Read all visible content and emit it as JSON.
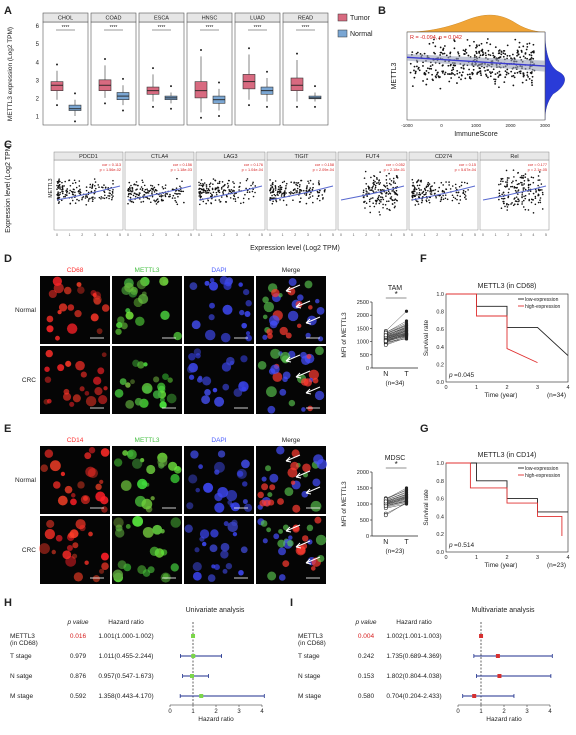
{
  "panels": {
    "A": {
      "letter": "A",
      "ylabel": "METTL3 expression (Log2 TPM)",
      "sig": "****",
      "yticks": [
        "1",
        "2",
        "3",
        "4",
        "5",
        "6"
      ],
      "legend": [
        {
          "name": "Tumor",
          "color": "#d86a80"
        },
        {
          "name": "Normal",
          "color": "#7aa6d3"
        }
      ]
    },
    "B": {
      "letter": "B",
      "ylabel": "METTL3",
      "xlabel": "ImmuneScore",
      "stat": "R = -0.094, p = 0.042",
      "xticks": [
        "-1000",
        "0",
        "1000",
        "2000",
        "3000"
      ]
    },
    "C": {
      "letter": "C",
      "ylabel": "Expression level (Log2 TPM)",
      "inner_ylabel": "METTL3",
      "xlabel": "Expression level (Log2 TPM)",
      "panels": [
        "PDCD1",
        "CTLA4",
        "LAG3",
        "TIGIT",
        "FUT4",
        "CD274",
        "Rel"
      ],
      "cors": [
        [
          "cor = 0.113",
          "p = 1.56e-02"
        ],
        [
          "cor = 0.156",
          "p = 1.18e-03"
        ],
        [
          "cor = 0.176",
          "p = 1.04e-04"
        ],
        [
          "cor = 0.158",
          "p = 2.09e-04"
        ],
        [
          "cor = 0.052",
          "p = 2.18e-01"
        ],
        [
          "cor = 0.15",
          "p = 5.67e-04"
        ],
        [
          "cor = 0.177",
          "p = 2.1e-05"
        ]
      ]
    },
    "D": {
      "letter": "D",
      "channels": [
        "CD68",
        "METTL3",
        "DAPI",
        "Merge"
      ],
      "rows": [
        "Normal",
        "CRC"
      ],
      "dot_title": "TAM",
      "dot_ylabel": "MFI of METTL3",
      "dot_yticks": [
        "0",
        "500",
        "1000",
        "1500",
        "2000",
        "2500"
      ],
      "dot_x": [
        "N",
        "T"
      ],
      "dot_n": "(n=34)",
      "sig": "*"
    },
    "E": {
      "letter": "E",
      "channels": [
        "CD14",
        "METTL3",
        "DAPI",
        "Merge"
      ],
      "rows": [
        "Normal",
        "CRC"
      ],
      "dot_title": "MDSC",
      "dot_ylabel": "MFI of METTL3",
      "dot_yticks": [
        "0",
        "500",
        "1000",
        "1500",
        "2000"
      ],
      "dot_x": [
        "N",
        "T"
      ],
      "dot_n": "(n=23)",
      "sig": "*"
    },
    "F": {
      "letter": "F",
      "title": "METTL3 (in CD68)",
      "ylabel": "Survival rate",
      "xlabel": "Time (year)",
      "n": "(n=34)",
      "p": "=0.045",
      "legend": [
        "low-expression",
        "high-expression"
      ],
      "yticks": [
        "0.0",
        "0.2",
        "0.4",
        "0.6",
        "0.8",
        "1.0"
      ],
      "xticks": [
        "0",
        "1",
        "2",
        "3",
        "4"
      ]
    },
    "G": {
      "letter": "G",
      "title": "METTL3 (in CD14)",
      "ylabel": "Survival rate",
      "xlabel": "Time (year)",
      "n": "(n=23)",
      "p": "=0.514",
      "legend": [
        "low-expression",
        "high-expression"
      ],
      "yticks": [
        "0.0",
        "0.2",
        "0.4",
        "0.6",
        "0.8",
        "1.0"
      ],
      "xticks": [
        "0",
        "1",
        "2",
        "3",
        "4"
      ]
    },
    "H": {
      "letter": "H",
      "title": "Univariate analysis",
      "col_p": "p value",
      "col_hr": "Hazard ratio",
      "xlabel": "Hazard ratio",
      "xticks": [
        "0",
        "1",
        "2",
        "3",
        "4"
      ],
      "rows": [
        {
          "name": "METTL3",
          "name2": "(in CD68)",
          "p": "0.016",
          "hr": "1.001(1.000-1.002)",
          "red": true
        },
        {
          "name": "T stage",
          "name2": "",
          "p": "0.979",
          "hr": "1.011(0.455-2.244)",
          "red": false
        },
        {
          "name": "N satge",
          "name2": "",
          "p": "0.876",
          "hr": "0.957(0.547-1.673)",
          "red": false
        },
        {
          "name": "M stage",
          "name2": "",
          "p": "0.592",
          "hr": "1.358(0.443-4.170)",
          "red": false
        }
      ]
    },
    "I": {
      "letter": "I",
      "title": "Multivariate analysis",
      "col_p": "p value",
      "col_hr": "Hazard ratio",
      "xlabel": "Hazard ratio",
      "xticks": [
        "0",
        "1",
        "2",
        "3",
        "4"
      ],
      "rows": [
        {
          "name": "METTL3",
          "name2": "(in CD68)",
          "p": "0.004",
          "hr": "1.002(1.001-1.003)",
          "red": true
        },
        {
          "name": "T stage",
          "name2": "",
          "p": "0.242",
          "hr": "1.735(0.689-4.369)",
          "red": false
        },
        {
          "name": "N stage",
          "name2": "",
          "p": "0.153",
          "hr": "1.802(0.804-4.038)",
          "red": false
        },
        {
          "name": "M stage",
          "name2": "",
          "p": "0.580",
          "hr": "0.704(0.204-2.433)",
          "red": false
        }
      ]
    }
  },
  "chart_data": [
    {
      "type": "box",
      "panel": "A",
      "categories": [
        "CHOL",
        "COAD",
        "ESCA",
        "HNSC",
        "LUAD",
        "READ"
      ],
      "ylabel": "METTL3 expression (Log2 TPM)",
      "ylim": [
        0.5,
        6.2
      ],
      "series": [
        {
          "name": "Tumor",
          "stats": [
            [
              1.9,
              2.4,
              2.7,
              2.9,
              3.5
            ],
            [
              2.0,
              2.4,
              2.7,
              3.0,
              3.8
            ],
            [
              1.8,
              2.2,
              2.4,
              2.6,
              3.3
            ],
            [
              1.2,
              2.0,
              2.4,
              2.9,
              4.3
            ],
            [
              1.9,
              2.5,
              2.9,
              3.3,
              4.4
            ],
            [
              1.8,
              2.4,
              2.7,
              3.1,
              4.1
            ]
          ]
        },
        {
          "name": "Normal",
          "stats": [
            [
              1.0,
              1.3,
              1.4,
              1.6,
              1.9
            ],
            [
              1.6,
              1.9,
              2.1,
              2.3,
              2.7
            ],
            [
              1.7,
              1.9,
              2.0,
              2.1,
              2.3
            ],
            [
              1.3,
              1.7,
              1.9,
              2.1,
              2.5
            ],
            [
              1.8,
              2.2,
              2.4,
              2.6,
              3.1
            ],
            [
              1.8,
              1.95,
              2.0,
              2.1,
              2.3
            ]
          ]
        }
      ]
    },
    {
      "type": "scatter",
      "panel": "B",
      "xlabel": "ImmuneScore",
      "ylabel": "METTL3",
      "xlim": [
        -1000,
        3000
      ],
      "ylim": [
        0,
        4
      ],
      "trend": {
        "y_at_-1000": 2.85,
        "y_at_3000": 2.45
      }
    },
    {
      "type": "scatter",
      "panel": "C",
      "series": [
        "PDCD1",
        "CTLA4",
        "LAG3",
        "TIGIT",
        "FUT4",
        "CD274",
        "Rel"
      ]
    },
    {
      "type": "paired-dot",
      "panel": "D",
      "title": "TAM",
      "ylabel": "MFI of METTL3",
      "ylim": [
        0,
        2500
      ],
      "categories": [
        "N",
        "T"
      ],
      "n": 34,
      "N_values": [
        1180,
        1050,
        1230,
        980,
        1310,
        1120,
        900,
        1260,
        1400,
        1010,
        1150,
        1080,
        950,
        1350,
        1200,
        1090,
        1040,
        1280,
        1170,
        870,
        1220,
        1130,
        1000,
        1300,
        1070,
        1250,
        990,
        1160,
        1110,
        1340,
        1060,
        1190,
        1240,
        1020
      ],
      "T_values": [
        1400,
        1250,
        1550,
        1100,
        1650,
        1300,
        1200,
        1500,
        2150,
        1280,
        1350,
        1420,
        1180,
        1700,
        1450,
        1320,
        1260,
        1600,
        1380,
        1150,
        1480,
        1330,
        1220,
        1620,
        1290,
        1520,
        1240,
        1400,
        1310,
        1780,
        1270,
        1430,
        1560,
        1210
      ]
    },
    {
      "type": "paired-dot",
      "panel": "E",
      "title": "MDSC",
      "ylabel": "MFI of METTL3",
      "ylim": [
        0,
        2000
      ],
      "categories": [
        "N",
        "T"
      ],
      "n": 23,
      "N_values": [
        1050,
        980,
        1120,
        900,
        1180,
        1010,
        960,
        1090,
        1140,
        930,
        700,
        1060,
        1000,
        1110,
        870,
        1030,
        990,
        1070,
        940,
        1150,
        1020,
        650,
        1080
      ],
      "T_values": [
        1200,
        1130,
        1350,
        1050,
        1420,
        1190,
        1100,
        1300,
        1450,
        1080,
        1020,
        1250,
        1170,
        1380,
        1000,
        1220,
        1160,
        1310,
        1090,
        1500,
        1240,
        1050,
        1280
      ]
    },
    {
      "type": "line",
      "panel": "F",
      "title": "METTL3 (in CD68)",
      "xlabel": "Time (year)",
      "ylabel": "Survival rate",
      "xlim": [
        0,
        4
      ],
      "ylim": [
        0,
        1
      ],
      "series": [
        {
          "name": "low-expression",
          "x": [
            0,
            1,
            1,
            2,
            2,
            3,
            3,
            4
          ],
          "y": [
            1,
            1,
            0.86,
            0.86,
            0.62,
            0.62,
            0.62,
            0.3
          ]
        },
        {
          "name": "high-expression",
          "x": [
            0,
            1,
            1,
            2,
            2,
            3
          ],
          "y": [
            1,
            1,
            0.75,
            0.75,
            0.38,
            0.22
          ]
        }
      ]
    },
    {
      "type": "line",
      "panel": "G",
      "title": "METTL3 (in CD14)",
      "xlabel": "Time (year)",
      "ylabel": "Survival rate",
      "xlim": [
        0,
        4
      ],
      "ylim": [
        0,
        1
      ],
      "series": [
        {
          "name": "low-expression",
          "x": [
            0,
            1,
            1,
            2,
            2,
            3,
            3,
            4
          ],
          "y": [
            1,
            1,
            0.8,
            0.8,
            0.6,
            0.6,
            0.45,
            0.45
          ]
        },
        {
          "name": "high-expression",
          "x": [
            0,
            0.8,
            0.8,
            2,
            2,
            3,
            3,
            3.8,
            3.8
          ],
          "y": [
            1,
            1,
            0.72,
            0.72,
            0.55,
            0.55,
            0.4,
            0.4,
            0.18
          ]
        }
      ]
    },
    {
      "type": "forest",
      "panel": "H",
      "title": "Univariate analysis",
      "xlabel": "Hazard ratio",
      "xlim": [
        0,
        4
      ],
      "rows": [
        {
          "name": "METTL3 (in CD68)",
          "hr": 1.001,
          "lo": 1.0,
          "hi": 1.002
        },
        {
          "name": "T stage",
          "hr": 1.011,
          "lo": 0.455,
          "hi": 2.244
        },
        {
          "name": "N satge",
          "hr": 0.957,
          "lo": 0.547,
          "hi": 1.673
        },
        {
          "name": "M stage",
          "hr": 1.358,
          "lo": 0.443,
          "hi": 4.17
        }
      ]
    },
    {
      "type": "forest",
      "panel": "I",
      "title": "Multivariate analysis",
      "xlabel": "Hazard ratio",
      "xlim": [
        0,
        4
      ],
      "rows": [
        {
          "name": "METTL3 (in CD68)",
          "hr": 1.002,
          "lo": 1.001,
          "hi": 1.003
        },
        {
          "name": "T stage",
          "hr": 1.735,
          "lo": 0.689,
          "hi": 4.369
        },
        {
          "name": "N stage",
          "hr": 1.802,
          "lo": 0.804,
          "hi": 4.038
        },
        {
          "name": "M stage",
          "hr": 0.704,
          "lo": 0.204,
          "hi": 2.433
        }
      ]
    }
  ]
}
